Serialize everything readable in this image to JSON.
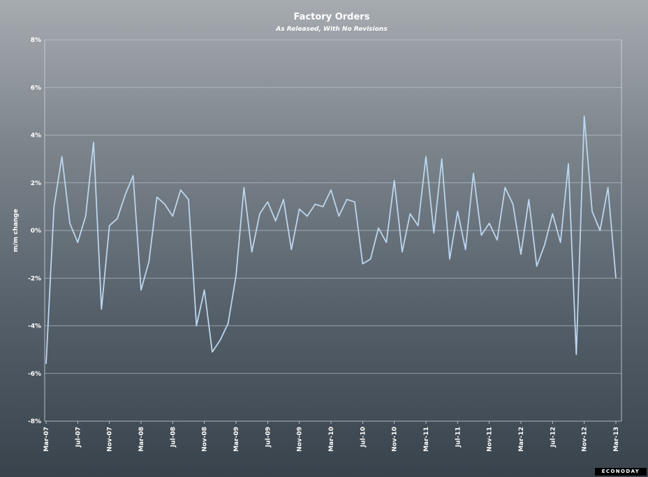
{
  "chart_data": {
    "type": "line",
    "title": "Factory Orders",
    "subtitle": "As Released, With No Revisions",
    "ylabel": "m/m change",
    "ylim": [
      -8,
      8
    ],
    "yticks": [
      8,
      6,
      4,
      2,
      0,
      -2,
      -4,
      -6,
      -8
    ],
    "ytick_labels": [
      "8%",
      "6%",
      "4%",
      "2%",
      "0%",
      "-2%",
      "-4%",
      "-6%",
      "-8%"
    ],
    "xtick_labels": [
      "Mar-07",
      "Jul-07",
      "Nov-07",
      "Mar-08",
      "Jul-08",
      "Nov-08",
      "Mar-09",
      "Jul-09",
      "Nov-09",
      "Mar-10",
      "Jul-10",
      "Nov-10",
      "Mar-11",
      "Jul-11",
      "Nov-11",
      "Mar-12",
      "Jul-12",
      "Nov-12",
      "Mar-13"
    ],
    "grid": true,
    "series": [
      {
        "color": "#bcd6ee",
        "x": [
          "Mar-07",
          "Apr-07",
          "May-07",
          "Jun-07",
          "Jul-07",
          "Aug-07",
          "Sep-07",
          "Oct-07",
          "Nov-07",
          "Dec-07",
          "Jan-08",
          "Feb-08",
          "Mar-08",
          "Apr-08",
          "May-08",
          "Jun-08",
          "Jul-08",
          "Aug-08",
          "Sep-08",
          "Oct-08",
          "Nov-08",
          "Dec-08",
          "Jan-09",
          "Feb-09",
          "Mar-09",
          "Apr-09",
          "May-09",
          "Jun-09",
          "Jul-09",
          "Aug-09",
          "Sep-09",
          "Oct-09",
          "Nov-09",
          "Dec-09",
          "Jan-10",
          "Feb-10",
          "Mar-10",
          "Apr-10",
          "May-10",
          "Jun-10",
          "Jul-10",
          "Aug-10",
          "Sep-10",
          "Oct-10",
          "Nov-10",
          "Dec-10",
          "Jan-11",
          "Feb-11",
          "Mar-11",
          "Apr-11",
          "May-11",
          "Jun-11",
          "Jul-11",
          "Aug-11",
          "Sep-11",
          "Oct-11",
          "Nov-11",
          "Dec-11",
          "Jan-12",
          "Feb-12",
          "Mar-12",
          "Apr-12",
          "May-12",
          "Jun-12",
          "Jul-12",
          "Aug-12",
          "Sep-12",
          "Oct-12",
          "Nov-12",
          "Dec-12",
          "Jan-13",
          "Feb-13",
          "Mar-13"
        ],
        "values": [
          -5.6,
          1.0,
          3.1,
          0.3,
          -0.5,
          0.6,
          3.7,
          -3.3,
          0.2,
          0.5,
          1.5,
          2.3,
          -2.5,
          -1.3,
          1.4,
          1.1,
          0.6,
          1.7,
          1.3,
          -4.0,
          -2.5,
          -5.1,
          -4.6,
          -3.9,
          -1.9,
          1.8,
          -0.9,
          0.7,
          1.2,
          0.4,
          1.3,
          -0.8,
          0.9,
          0.6,
          1.1,
          1.0,
          1.7,
          0.6,
          1.3,
          1.2,
          -1.4,
          -1.2,
          0.1,
          -0.5,
          2.1,
          -0.9,
          0.7,
          0.2,
          3.1,
          -0.1,
          3.0,
          -1.2,
          0.8,
          -0.8,
          2.4,
          -0.2,
          0.3,
          -0.4,
          1.8,
          1.1,
          -1.0,
          1.3,
          -1.5,
          -0.6,
          0.7,
          -0.5,
          2.8,
          -5.2,
          4.8,
          0.8,
          0.0,
          1.8,
          -2.0
        ]
      }
    ]
  },
  "branding": {
    "text": "ECONODAY"
  }
}
